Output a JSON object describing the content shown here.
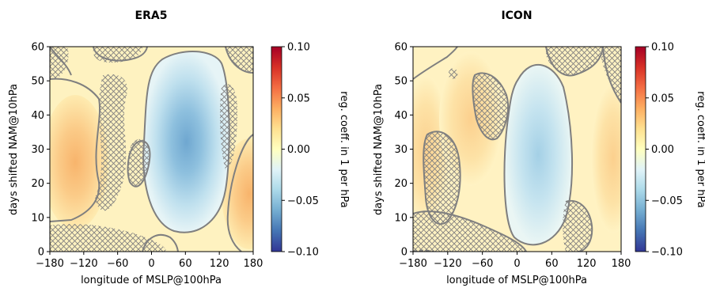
{
  "chart_data": [
    {
      "type": "heatmap",
      "title": "ERA5",
      "xlabel": "longitude of MSLP@100hPa",
      "ylabel": "days shifted NAM@10hPa",
      "xlim": [
        -180,
        180
      ],
      "ylim": [
        0,
        60
      ],
      "xticks": [
        "−180",
        "−120",
        "−60",
        "0",
        "60",
        "120",
        "180"
      ],
      "yticks": [
        "0",
        "10",
        "20",
        "30",
        "40",
        "50",
        "60"
      ],
      "colorbar": {
        "label": "reg. coeff. in 1 per hPa",
        "range": [
          -0.1,
          0.1
        ],
        "ticks": [
          "−0.10",
          "−0.05",
          "0.00",
          "0.05",
          "0.10"
        ],
        "colormap": "RdYlBu_r"
      },
      "features": [
        {
          "kind": "negative",
          "lon": 55,
          "day": 33,
          "value": -0.045
        },
        {
          "kind": "positive",
          "lon": -160,
          "day": 27,
          "value": 0.025
        },
        {
          "kind": "positive",
          "lon": 165,
          "day": 18,
          "value": 0.022
        }
      ]
    },
    {
      "type": "heatmap",
      "title": "ICON",
      "xlabel": "longitude of MSLP@100hPa",
      "ylabel": "days shifted NAM@10hPa",
      "xlim": [
        -180,
        180
      ],
      "ylim": [
        0,
        60
      ],
      "xticks": [
        "−180",
        "−120",
        "−60",
        "0",
        "60",
        "120",
        "180"
      ],
      "yticks": [
        "0",
        "10",
        "20",
        "30",
        "40",
        "50",
        "60"
      ],
      "colorbar": {
        "label": "reg. coeff. in 1 per hPa",
        "range": [
          -0.1,
          0.1
        ],
        "ticks": [
          "−0.10",
          "−0.05",
          "0.00",
          "0.05",
          "0.10"
        ],
        "colormap": "RdYlBu_r"
      },
      "features": [
        {
          "kind": "negative",
          "lon": 45,
          "day": 28,
          "value": -0.03
        },
        {
          "kind": "positive",
          "lon": -170,
          "day": 30,
          "value": 0.015
        },
        {
          "kind": "positive",
          "lon": -35,
          "day": 35,
          "value": 0.012
        },
        {
          "kind": "positive",
          "lon": 165,
          "day": 25,
          "value": 0.015
        }
      ]
    }
  ]
}
